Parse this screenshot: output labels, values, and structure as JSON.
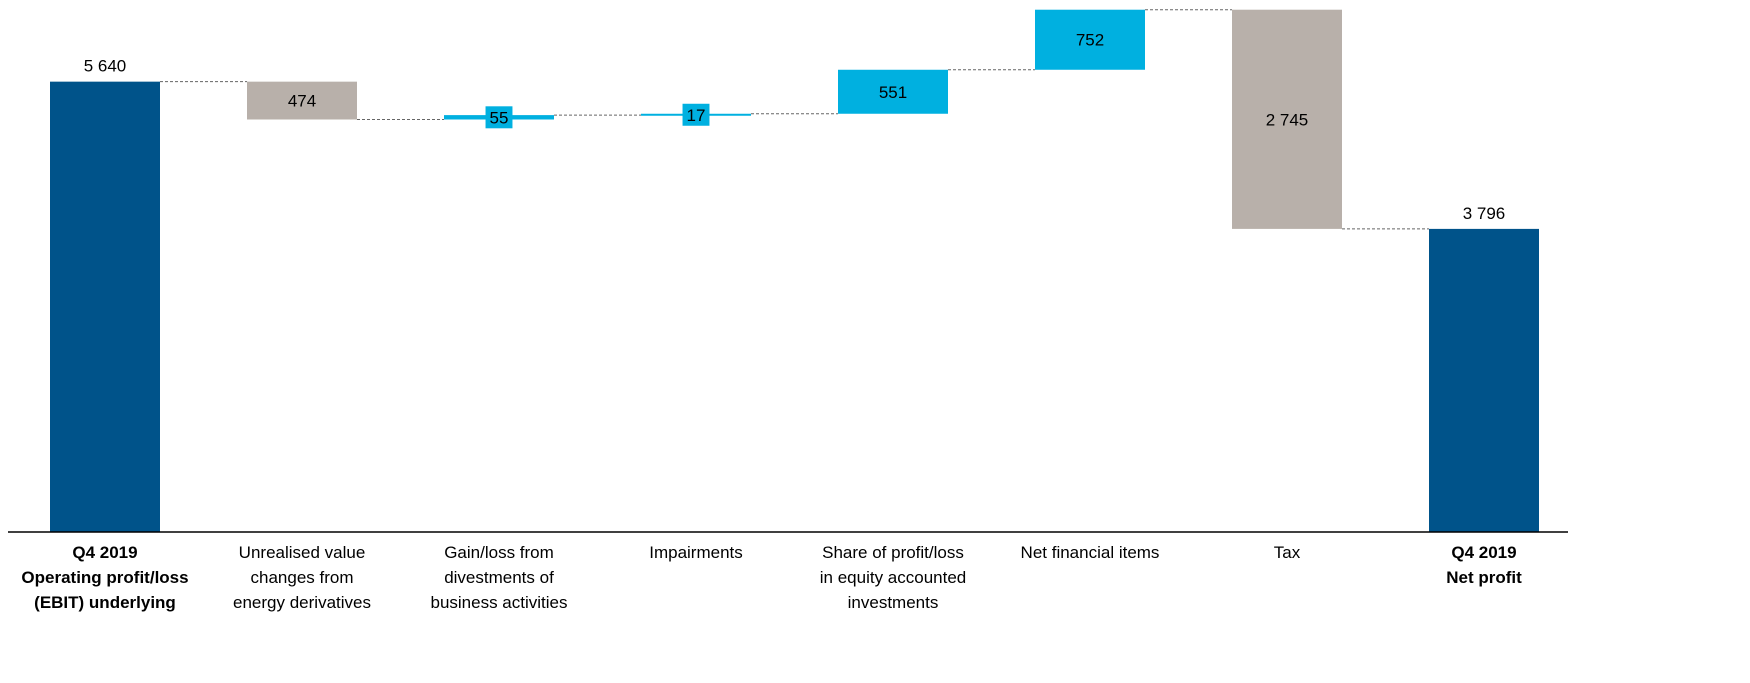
{
  "chart_data": {
    "type": "waterfall",
    "categories": [
      "Q4 2019\nOperating profit/loss\n(EBIT) underlying",
      "Unrealised value\nchanges from\nenergy derivatives",
      "Gain/loss from\ndivestments of\nbusiness activities",
      "Impairments",
      "Share of profit/loss\nin equity accounted\ninvestments",
      "Net financial items",
      "Tax",
      "Q4 2019\nNet profit"
    ],
    "measures": [
      "total",
      "relative",
      "relative",
      "relative",
      "relative",
      "relative",
      "relative",
      "total"
    ],
    "values": [
      5640,
      -474,
      55,
      17,
      551,
      752,
      -2745,
      3796
    ],
    "value_labels": [
      "5 640",
      "474",
      "55",
      "17",
      "551",
      "752",
      "2 745",
      "3 796"
    ],
    "total_color": "#00538a",
    "increase_color": "#00b0e0",
    "decrease_color": "#b8b0aa",
    "ylim": [
      0,
      6600
    ]
  }
}
